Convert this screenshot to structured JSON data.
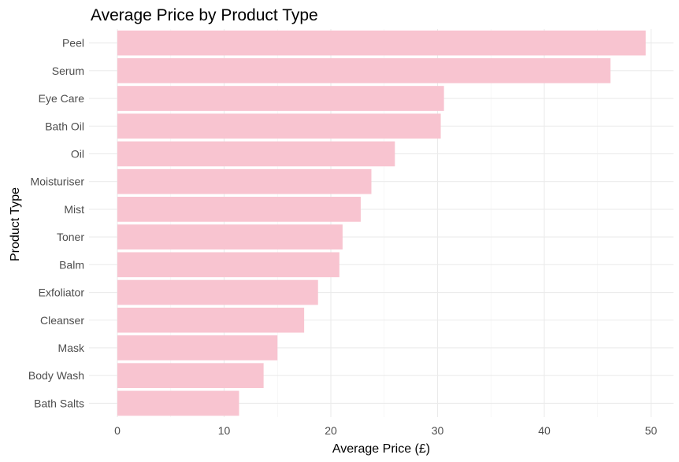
{
  "chart_data": {
    "type": "bar",
    "orientation": "horizontal",
    "title": "Average Price by Product Type",
    "xlabel": "Average Price (£)",
    "ylabel": "Product Type",
    "categories": [
      "Peel",
      "Serum",
      "Eye Care",
      "Bath Oil",
      "Oil",
      "Moisturiser",
      "Mist",
      "Toner",
      "Balm",
      "Exfoliator",
      "Cleanser",
      "Mask",
      "Body Wash",
      "Bath Salts"
    ],
    "values": [
      49.5,
      46.2,
      30.6,
      30.3,
      26.0,
      23.8,
      22.8,
      21.1,
      20.8,
      18.8,
      17.5,
      15.0,
      13.7,
      11.4
    ],
    "xlim": [
      0,
      52
    ],
    "xticks": [
      "0",
      "10",
      "20",
      "30",
      "40",
      "50"
    ],
    "bar_color": "#f8c4d0",
    "grid": true,
    "legend": "none"
  }
}
